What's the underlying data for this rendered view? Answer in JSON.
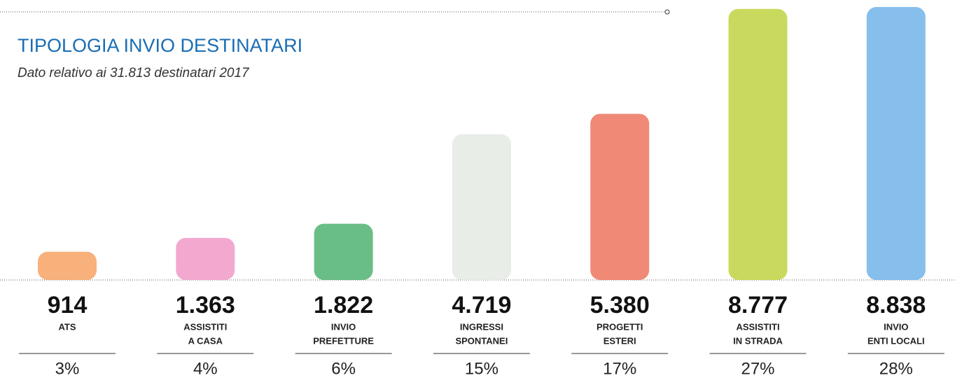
{
  "chart_data": {
    "type": "bar",
    "title": "TIPOLOGIA INVIO DESTINATARI",
    "subtitle": "Dato relativo ai 31.813 destinatari 2017",
    "categories": [
      [
        "ATS"
      ],
      [
        "ASSISTITI",
        "A CASA"
      ],
      [
        "INVIO",
        "PREFETTURE"
      ],
      [
        "INGRESSI",
        "SPONTANEI"
      ],
      [
        "PROGETTI",
        "ESTERI"
      ],
      [
        "ASSISTITI",
        "IN STRADA"
      ],
      [
        "INVIO",
        "ENTI LOCALI"
      ]
    ],
    "values": [
      914,
      1363,
      1822,
      4719,
      5380,
      8777,
      8838
    ],
    "value_labels": [
      "914",
      "1.363",
      "1.822",
      "4.719",
      "5.380",
      "8.777",
      "8.838"
    ],
    "colors": [
      "#f7aa70",
      "#f2a2cb",
      "#5cb97c",
      "#e6ebe6",
      "#ef806b",
      "#c4d64f",
      "#7cb9ea"
    ],
    "percentages": {
      "values": [
        3,
        4,
        6,
        15,
        17,
        27,
        28
      ],
      "value_labels": [
        "3%",
        "4%",
        "6%",
        "15%",
        "17%",
        "27%",
        "28%"
      ]
    }
  }
}
